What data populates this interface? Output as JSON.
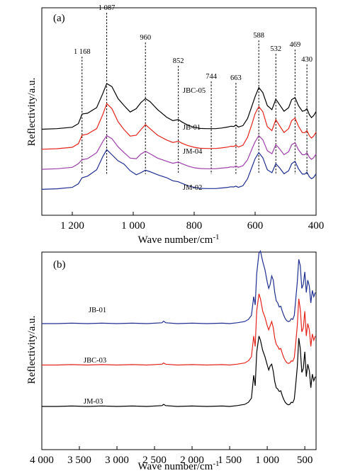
{
  "chart_data": [
    {
      "type": "line",
      "panel_label": "(a)",
      "xlabel": "Wave number/cm",
      "xlabel_sup": "-1",
      "ylabel": "Reflectivity/a.u.",
      "xlim": [
        1300,
        400
      ],
      "x_ticks": [
        1200,
        1000,
        800,
        600,
        400
      ],
      "x_tick_labels": [
        "1 200",
        "1 000",
        "800",
        "600",
        "400"
      ],
      "peaks": [
        {
          "x": 1168,
          "label": "1 168"
        },
        {
          "x": 1087,
          "label": "1 087"
        },
        {
          "x": 960,
          "label": "960"
        },
        {
          "x": 852,
          "label": "852"
        },
        {
          "x": 744,
          "label": "744"
        },
        {
          "x": 663,
          "label": "663"
        },
        {
          "x": 588,
          "label": "588"
        },
        {
          "x": 532,
          "label": "532"
        },
        {
          "x": 469,
          "label": "469"
        },
        {
          "x": 430,
          "label": "430"
        }
      ],
      "series": [
        {
          "name": "JBC-05",
          "color": "#000000",
          "offset": 3.0,
          "x": [
            1300,
            1250,
            1200,
            1180,
            1168,
            1150,
            1120,
            1100,
            1087,
            1070,
            1050,
            1030,
            1010,
            990,
            975,
            960,
            945,
            920,
            890,
            870,
            852,
            840,
            820,
            800,
            780,
            760,
            744,
            730,
            710,
            690,
            680,
            670,
            663,
            655,
            640,
            625,
            610,
            600,
            588,
            575,
            560,
            545,
            532,
            520,
            505,
            490,
            480,
            469,
            458,
            445,
            437,
            430,
            422,
            415,
            408,
            400
          ],
          "y": [
            0.02,
            0.05,
            0.12,
            0.3,
            0.78,
            0.82,
            1.1,
            1.8,
            2.3,
            2.15,
            1.55,
            1.2,
            0.88,
            1.05,
            1.35,
            1.55,
            1.4,
            1.0,
            0.62,
            0.45,
            0.5,
            0.38,
            0.22,
            0.12,
            0.06,
            0.05,
            0.05,
            0.05,
            0.08,
            0.13,
            0.17,
            0.16,
            0.23,
            0.13,
            0.2,
            0.55,
            1.2,
            1.65,
            2.1,
            1.85,
            1.2,
            1.0,
            1.52,
            1.25,
            0.92,
            1.1,
            1.5,
            1.6,
            1.2,
            0.92,
            0.95,
            1.05,
            0.75,
            0.6,
            0.7,
            0.9
          ]
        },
        {
          "name": "JB-01",
          "color": "#e3251b",
          "offset": 2.0,
          "x": [
            1300,
            1250,
            1200,
            1180,
            1168,
            1150,
            1120,
            1100,
            1087,
            1070,
            1050,
            1030,
            1010,
            990,
            975,
            960,
            945,
            920,
            890,
            870,
            852,
            840,
            820,
            800,
            780,
            760,
            744,
            730,
            710,
            690,
            680,
            670,
            663,
            655,
            640,
            625,
            610,
            600,
            588,
            575,
            560,
            545,
            532,
            520,
            505,
            490,
            480,
            469,
            458,
            445,
            437,
            430,
            422,
            415,
            408,
            400
          ],
          "y": [
            0.02,
            0.05,
            0.12,
            0.3,
            0.72,
            0.78,
            1.05,
            1.75,
            2.3,
            2.05,
            1.4,
            1.0,
            0.68,
            0.72,
            1.0,
            1.25,
            1.05,
            0.72,
            0.48,
            0.36,
            0.42,
            0.32,
            0.2,
            0.12,
            0.07,
            0.06,
            0.06,
            0.06,
            0.09,
            0.13,
            0.17,
            0.16,
            0.22,
            0.13,
            0.22,
            0.62,
            1.3,
            1.8,
            2.15,
            1.9,
            1.15,
            0.95,
            1.5,
            1.2,
            0.86,
            1.05,
            1.45,
            1.58,
            1.18,
            0.85,
            0.85,
            0.95,
            0.7,
            0.58,
            0.68,
            0.88
          ]
        },
        {
          "name": "JM-04",
          "color": "#9b3fa7",
          "offset": 1.0,
          "x": [
            1300,
            1250,
            1200,
            1180,
            1168,
            1150,
            1120,
            1100,
            1087,
            1070,
            1050,
            1030,
            1010,
            990,
            975,
            960,
            945,
            920,
            890,
            870,
            852,
            840,
            820,
            800,
            780,
            760,
            744,
            730,
            710,
            690,
            680,
            670,
            663,
            655,
            640,
            625,
            610,
            600,
            588,
            575,
            560,
            545,
            532,
            520,
            505,
            490,
            480,
            469,
            458,
            445,
            437,
            430,
            422,
            415,
            408,
            400
          ],
          "y": [
            0.02,
            0.05,
            0.12,
            0.3,
            0.5,
            0.55,
            0.85,
            1.4,
            1.7,
            1.55,
            1.15,
            0.85,
            0.58,
            0.55,
            0.78,
            0.92,
            0.8,
            0.58,
            0.42,
            0.32,
            0.38,
            0.3,
            0.18,
            0.1,
            0.06,
            0.05,
            0.05,
            0.05,
            0.08,
            0.11,
            0.14,
            0.13,
            0.19,
            0.12,
            0.2,
            0.5,
            1.05,
            1.4,
            1.7,
            1.5,
            0.95,
            0.8,
            1.25,
            1.05,
            0.75,
            0.9,
            1.25,
            1.35,
            1.0,
            0.75,
            0.75,
            0.85,
            0.62,
            0.52,
            0.6,
            0.78
          ]
        },
        {
          "name": "JM-02",
          "color": "#1f2f8f",
          "offset": 0.0,
          "x": [
            1300,
            1250,
            1200,
            1180,
            1168,
            1150,
            1120,
            1100,
            1087,
            1070,
            1050,
            1030,
            1010,
            990,
            975,
            960,
            945,
            920,
            890,
            870,
            852,
            840,
            820,
            800,
            780,
            760,
            744,
            730,
            710,
            690,
            680,
            670,
            663,
            655,
            640,
            625,
            610,
            600,
            588,
            575,
            560,
            545,
            532,
            520,
            505,
            490,
            480,
            469,
            458,
            445,
            437,
            430,
            422,
            415,
            408,
            400
          ],
          "y": [
            0.02,
            0.05,
            0.12,
            0.3,
            0.6,
            0.68,
            1.0,
            1.65,
            2.0,
            1.75,
            1.45,
            1.28,
            0.95,
            0.75,
            0.85,
            0.98,
            0.9,
            0.75,
            0.6,
            0.45,
            0.4,
            0.32,
            0.2,
            0.12,
            0.07,
            0.06,
            0.06,
            0.06,
            0.09,
            0.12,
            0.15,
            0.14,
            0.18,
            0.12,
            0.2,
            0.55,
            1.15,
            1.55,
            1.85,
            1.6,
            1.0,
            0.85,
            1.3,
            1.1,
            0.8,
            0.95,
            1.3,
            1.42,
            1.05,
            0.78,
            0.78,
            0.88,
            0.65,
            0.55,
            0.62,
            0.8
          ]
        }
      ]
    },
    {
      "type": "line",
      "panel_label": "(b)",
      "xlabel": "Wave number/cm",
      "xlabel_sup": "-1",
      "ylabel": "Reflectivity/a.u.",
      "xlim": [
        4000,
        350
      ],
      "x_ticks": [
        4000,
        3500,
        3000,
        2500,
        2000,
        1500,
        1000,
        500
      ],
      "x_tick_labels": [
        "4 000",
        "3 500",
        "3 000",
        "2 500",
        "2 000",
        "1 500",
        "1 000",
        "500"
      ],
      "series": [
        {
          "name": "JB-01",
          "color": "#1f2f8f",
          "offset": 2.0,
          "x": [
            4000,
            3800,
            3600,
            3400,
            3200,
            3000,
            2800,
            2600,
            2400,
            2380,
            2350,
            2200,
            2000,
            1800,
            1600,
            1500,
            1400,
            1300,
            1250,
            1210,
            1180,
            1160,
            1140,
            1110,
            1090,
            1060,
            1030,
            1000,
            980,
            960,
            940,
            920,
            900,
            880,
            860,
            840,
            820,
            800,
            780,
            760,
            740,
            720,
            700,
            680,
            660,
            640,
            620,
            600,
            580,
            560,
            540,
            520,
            500,
            480,
            460,
            440,
            420,
            400,
            380,
            360
          ],
          "y": [
            0.0,
            0.0,
            0.01,
            0.0,
            0.01,
            0.0,
            0.01,
            0.0,
            0.02,
            0.06,
            0.02,
            0.0,
            0.01,
            0.0,
            0.01,
            0.0,
            0.02,
            0.05,
            0.1,
            0.2,
            0.65,
            0.45,
            1.2,
            1.7,
            1.75,
            1.5,
            1.3,
            1.0,
            0.85,
            0.95,
            1.15,
            1.05,
            0.75,
            0.55,
            0.5,
            0.4,
            0.42,
            0.3,
            0.2,
            0.12,
            0.07,
            0.05,
            0.06,
            0.12,
            0.1,
            0.2,
            0.6,
            1.0,
            1.55,
            1.4,
            0.85,
            0.95,
            1.25,
            0.75,
            1.05,
            0.9,
            0.5,
            0.8,
            0.65,
            0.75
          ]
        },
        {
          "name": "JBC-03",
          "color": "#e3251b",
          "offset": 1.0,
          "x": [
            4000,
            3800,
            3600,
            3400,
            3200,
            3000,
            2800,
            2600,
            2400,
            2380,
            2350,
            2200,
            2000,
            1800,
            1600,
            1500,
            1400,
            1300,
            1250,
            1210,
            1180,
            1160,
            1140,
            1110,
            1090,
            1060,
            1030,
            1000,
            980,
            960,
            940,
            920,
            900,
            880,
            860,
            840,
            820,
            800,
            780,
            760,
            740,
            720,
            700,
            680,
            660,
            640,
            620,
            600,
            580,
            560,
            540,
            520,
            500,
            480,
            460,
            440,
            420,
            400,
            380,
            360
          ],
          "y": [
            0.0,
            0.0,
            0.01,
            0.0,
            0.01,
            0.0,
            0.01,
            0.0,
            0.02,
            0.05,
            0.02,
            0.0,
            0.01,
            0.0,
            0.01,
            0.0,
            0.02,
            0.05,
            0.1,
            0.2,
            0.7,
            0.45,
            1.3,
            1.72,
            1.6,
            1.3,
            1.15,
            0.95,
            0.85,
            0.95,
            1.05,
            0.9,
            0.65,
            0.5,
            0.45,
            0.38,
            0.4,
            0.28,
            0.18,
            0.11,
            0.06,
            0.04,
            0.05,
            0.1,
            0.09,
            0.18,
            0.55,
            0.95,
            1.6,
            1.35,
            0.8,
            0.9,
            1.3,
            0.7,
            1.0,
            0.85,
            0.45,
            0.75,
            0.6,
            0.7
          ]
        },
        {
          "name": "JM-03",
          "color": "#000000",
          "offset": 0.0,
          "x": [
            4000,
            3800,
            3600,
            3400,
            3200,
            3000,
            2800,
            2600,
            2400,
            2380,
            2350,
            2200,
            2000,
            1800,
            1600,
            1500,
            1400,
            1300,
            1250,
            1210,
            1180,
            1160,
            1140,
            1110,
            1090,
            1060,
            1030,
            1000,
            980,
            960,
            940,
            920,
            900,
            880,
            860,
            840,
            820,
            800,
            780,
            760,
            740,
            720,
            700,
            680,
            660,
            640,
            620,
            600,
            580,
            560,
            540,
            520,
            500,
            480,
            460,
            440,
            420,
            400,
            380,
            360
          ],
          "y": [
            0.0,
            0.0,
            0.01,
            0.0,
            0.01,
            0.0,
            0.01,
            0.0,
            0.02,
            0.05,
            0.02,
            0.0,
            0.01,
            0.0,
            0.01,
            0.0,
            0.02,
            0.05,
            0.1,
            0.2,
            0.75,
            0.5,
            1.3,
            1.7,
            1.6,
            1.35,
            1.2,
            1.0,
            0.88,
            0.98,
            1.02,
            0.85,
            0.6,
            0.45,
            0.42,
            0.36,
            0.38,
            0.26,
            0.17,
            0.1,
            0.06,
            0.04,
            0.05,
            0.1,
            0.09,
            0.18,
            0.55,
            0.95,
            1.65,
            1.4,
            0.82,
            0.92,
            1.32,
            0.72,
            1.02,
            0.86,
            0.45,
            0.78,
            0.62,
            0.72
          ]
        }
      ]
    }
  ]
}
